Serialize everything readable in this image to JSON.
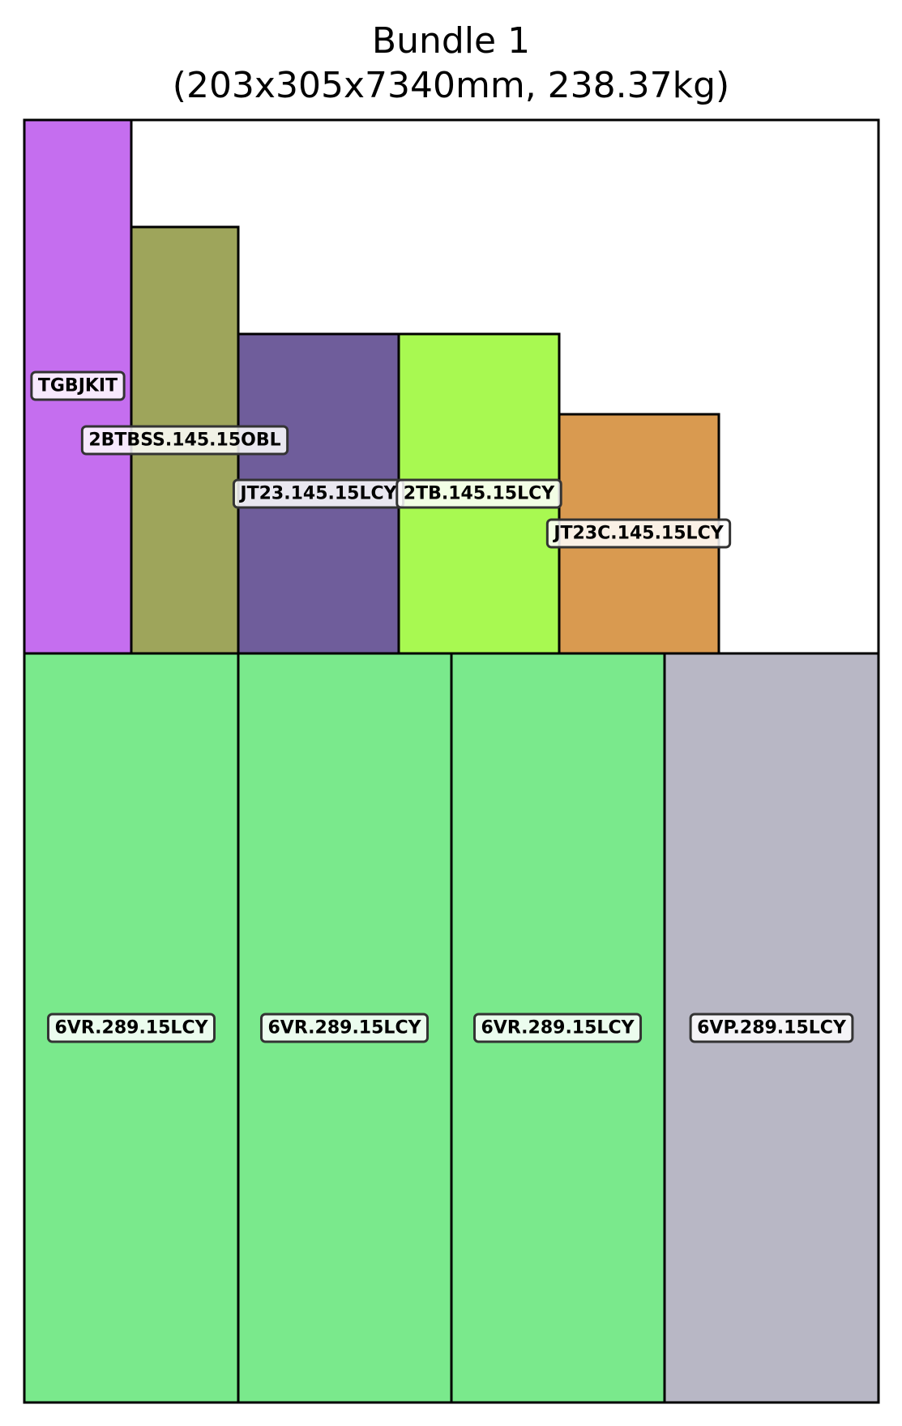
{
  "title": {
    "line1": "Bundle 1",
    "line2": "(203x305x7340mm, 238.37kg)"
  },
  "bundle": {
    "width_mm": 203,
    "height_mm": 305,
    "length_mm": 7340,
    "weight_kg": 238.37
  },
  "pieces": [
    {
      "label": "TGBJKIT",
      "color": "#c56eef"
    },
    {
      "label": "2BTBSS.145.15OBL",
      "color": "#9ea55b"
    },
    {
      "label": "JT23.145.15LCY",
      "color": "#6f5d9b"
    },
    {
      "label": "2TB.145.15LCY",
      "color": "#a8f951"
    },
    {
      "label": "JT23C.145.15LCY",
      "color": "#d99a50"
    },
    {
      "label": "6VR.289.15LCY",
      "color": "#7ae98c"
    },
    {
      "label": "6VR.289.15LCY",
      "color": "#7ae98c"
    },
    {
      "label": "6VR.289.15LCY",
      "color": "#7ae98c"
    },
    {
      "label": "6VP.289.15LCY",
      "color": "#b8b7c5"
    }
  ]
}
